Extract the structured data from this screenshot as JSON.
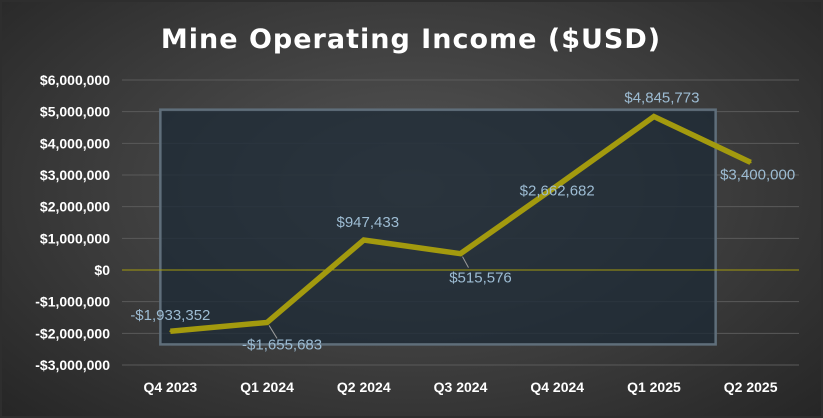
{
  "chart_data": {
    "type": "line",
    "title": "Mine Operating Income ($USD)",
    "categories": [
      "Q4 2023",
      "Q1 2024",
      "Q2 2024",
      "Q3 2024",
      "Q4 2024",
      "Q1 2025",
      "Q2 2025"
    ],
    "series": [
      {
        "values": [
          -1933352,
          -1655683,
          947433,
          515576,
          2662682,
          4845773,
          3400000
        ]
      }
    ],
    "data_labels": [
      "-$1,933,352",
      "-$1,655,683",
      "$947,433",
      "$515,576",
      "$2,662,682",
      "$4,845,773",
      "$3,400,000"
    ],
    "ylim": [
      -3000000,
      6000000
    ],
    "yticks": [
      6000000,
      5000000,
      4000000,
      3000000,
      2000000,
      1000000,
      0,
      -1000000,
      -2000000,
      -3000000
    ],
    "ytick_labels": [
      "$6,000,000",
      "$5,000,000",
      "$4,000,000",
      "$3,000,000",
      "$2,000,000",
      "$1,000,000",
      "$0",
      "-$1,000,000",
      "-$2,000,000",
      "-$3,000,000"
    ],
    "grid": true,
    "legend": "none",
    "colors": {
      "line": "#a39a0e",
      "zero_line": "#a39a0e",
      "data_label": "#9dbcd3",
      "text": "#ffffff",
      "highlight_box_border": "#5f6e7a",
      "highlight_box_fill": "#1c2a35"
    }
  }
}
